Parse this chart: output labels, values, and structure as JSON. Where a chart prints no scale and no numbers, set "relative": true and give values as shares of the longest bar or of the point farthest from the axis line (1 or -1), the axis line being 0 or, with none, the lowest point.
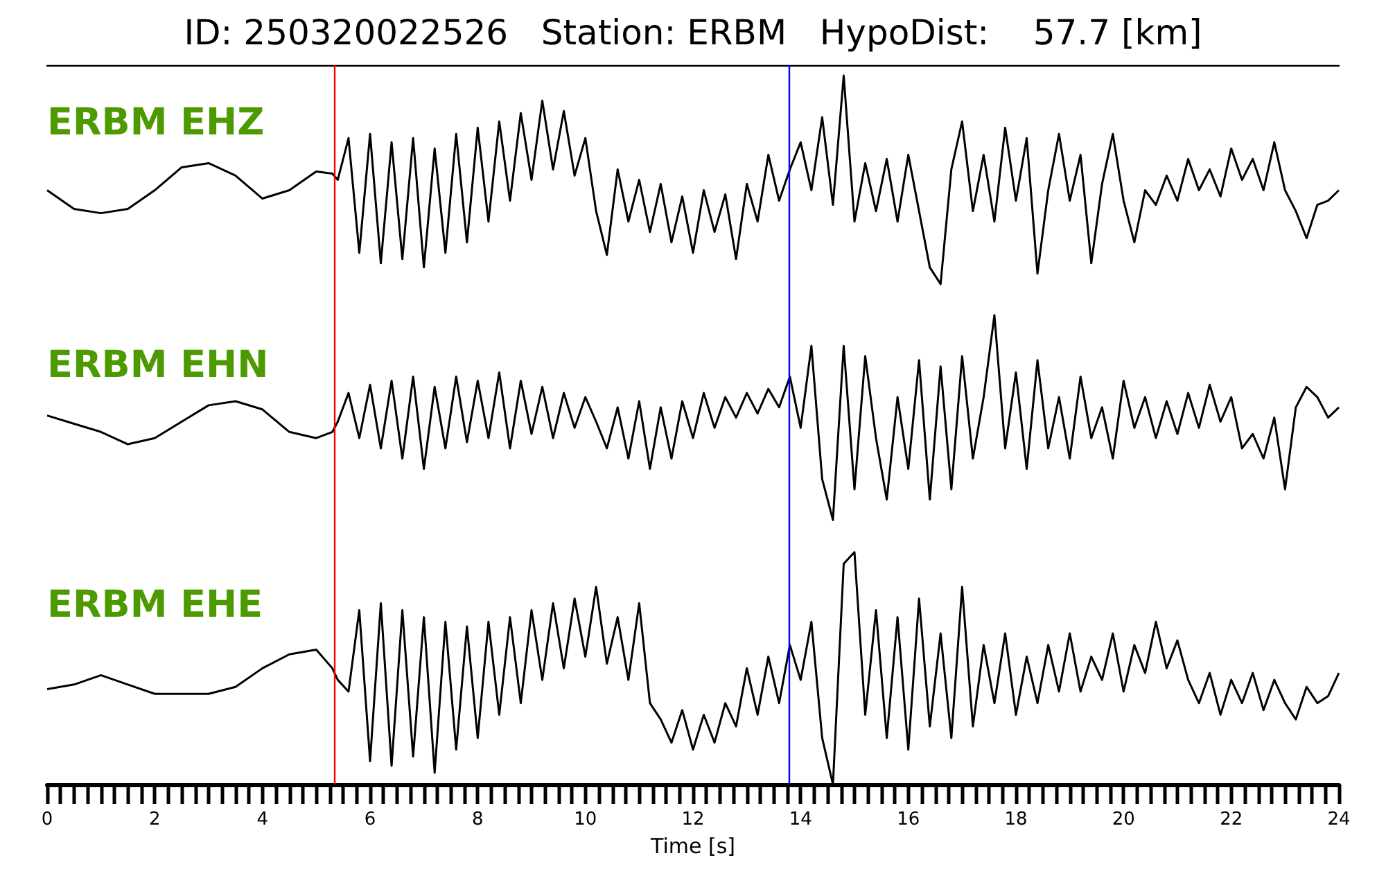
{
  "chart_data": [
    {
      "type": "line",
      "title": "ID: 250320022526   Station: ERBM   HypoDist:    57.7 [km]",
      "relative": true,
      "marker": "none",
      "tick_labels": false,
      "xlim": [
        0,
        24
      ],
      "x": [
        0,
        0.5,
        1,
        1.5,
        2,
        2.5,
        3,
        3.5,
        4,
        4.5,
        5,
        5.3,
        5.4,
        5.6,
        5.8,
        6,
        6.2,
        6.4,
        6.6,
        6.8,
        7,
        7.2,
        7.4,
        7.6,
        7.8,
        8,
        8.2,
        8.4,
        8.6,
        8.8,
        9,
        9.2,
        9.4,
        9.6,
        9.8,
        10,
        10.2,
        10.4,
        10.6,
        10.8,
        11,
        11.2,
        11.4,
        11.6,
        11.8,
        12,
        12.2,
        12.4,
        12.6,
        12.8,
        13,
        13.2,
        13.4,
        13.6,
        13.8,
        14,
        14.2,
        14.4,
        14.6,
        14.8,
        15,
        15.2,
        15.4,
        15.6,
        15.8,
        16,
        16.2,
        16.4,
        16.6,
        16.8,
        17,
        17.2,
        17.4,
        17.6,
        17.8,
        18,
        18.2,
        18.4,
        18.6,
        18.8,
        19,
        19.2,
        19.4,
        19.6,
        19.8,
        20,
        20.2,
        20.4,
        20.6,
        20.8,
        21,
        21.2,
        21.4,
        21.6,
        21.8,
        22,
        22.2,
        22.4,
        22.6,
        22.8,
        23,
        23.2,
        23.4,
        23.6,
        23.8,
        24
      ],
      "series": [
        {
          "name": "ERBM EHZ",
          "color": "#000000",
          "values": [
            0.45,
            0.36,
            0.34,
            0.36,
            0.45,
            0.56,
            0.58,
            0.52,
            0.41,
            0.45,
            0.54,
            0.53,
            0.5,
            0.7,
            0.15,
            0.72,
            0.1,
            0.68,
            0.12,
            0.7,
            0.08,
            0.65,
            0.15,
            0.72,
            0.2,
            0.75,
            0.3,
            0.78,
            0.4,
            0.82,
            0.5,
            0.88,
            0.55,
            0.83,
            0.52,
            0.7,
            0.35,
            0.14,
            0.55,
            0.3,
            0.5,
            0.25,
            0.48,
            0.2,
            0.42,
            0.15,
            0.45,
            0.25,
            0.43,
            0.12,
            0.48,
            0.3,
            0.62,
            0.4,
            0.55,
            0.68,
            0.45,
            0.8,
            0.38,
            1.0,
            0.3,
            0.58,
            0.35,
            0.6,
            0.3,
            0.62,
            0.35,
            0.08,
            0.0,
            0.55,
            0.78,
            0.35,
            0.62,
            0.3,
            0.75,
            0.4,
            0.7,
            0.05,
            0.45,
            0.72,
            0.4,
            0.62,
            0.1,
            0.48,
            0.72,
            0.4,
            0.2,
            0.45,
            0.38,
            0.52,
            0.4,
            0.6,
            0.45,
            0.55,
            0.42,
            0.65,
            0.5,
            0.6,
            0.45,
            0.68,
            0.45,
            0.35,
            0.22,
            0.38,
            0.4,
            0.45
          ]
        }
      ],
      "ref_lines": [
        {
          "axis": "x",
          "value": 5.33,
          "color": "#ff0000"
        },
        {
          "axis": "x",
          "value": 13.78,
          "color": "#0000ff"
        }
      ]
    },
    {
      "type": "line",
      "relative": true,
      "marker": "none",
      "tick_labels": false,
      "xlim": [
        0,
        24
      ],
      "x": [
        0,
        0.5,
        1,
        1.5,
        2,
        2.5,
        3,
        3.5,
        4,
        4.5,
        5,
        5.3,
        5.4,
        5.6,
        5.8,
        6,
        6.2,
        6.4,
        6.6,
        6.8,
        7,
        7.2,
        7.4,
        7.6,
        7.8,
        8,
        8.2,
        8.4,
        8.6,
        8.8,
        9,
        9.2,
        9.4,
        9.6,
        9.8,
        10,
        10.2,
        10.4,
        10.6,
        10.8,
        11,
        11.2,
        11.4,
        11.6,
        11.8,
        12,
        12.2,
        12.4,
        12.6,
        12.8,
        13,
        13.2,
        13.4,
        13.6,
        13.8,
        14,
        14.2,
        14.4,
        14.6,
        14.8,
        15,
        15.2,
        15.4,
        15.6,
        15.8,
        16,
        16.2,
        16.4,
        16.6,
        16.8,
        17,
        17.2,
        17.4,
        17.6,
        17.8,
        18,
        18.2,
        18.4,
        18.6,
        18.8,
        19,
        19.2,
        19.4,
        19.6,
        19.8,
        20,
        20.2,
        20.4,
        20.6,
        20.8,
        21,
        21.2,
        21.4,
        21.6,
        21.8,
        22,
        22.2,
        22.4,
        22.6,
        22.8,
        23,
        23.2,
        23.4,
        23.6,
        23.8,
        24
      ],
      "series": [
        {
          "name": "ERBM EHN",
          "color": "#000000",
          "values": [
            0.51,
            0.47,
            0.43,
            0.37,
            0.4,
            0.48,
            0.56,
            0.58,
            0.54,
            0.43,
            0.4,
            0.43,
            0.48,
            0.62,
            0.4,
            0.66,
            0.35,
            0.68,
            0.3,
            0.7,
            0.25,
            0.65,
            0.35,
            0.7,
            0.38,
            0.68,
            0.4,
            0.72,
            0.35,
            0.68,
            0.42,
            0.65,
            0.4,
            0.62,
            0.45,
            0.6,
            0.48,
            0.35,
            0.55,
            0.3,
            0.58,
            0.25,
            0.55,
            0.3,
            0.58,
            0.4,
            0.62,
            0.45,
            0.6,
            0.5,
            0.62,
            0.52,
            0.64,
            0.55,
            0.7,
            0.45,
            0.85,
            0.2,
            0.0,
            0.85,
            0.15,
            0.8,
            0.4,
            0.1,
            0.6,
            0.25,
            0.78,
            0.1,
            0.75,
            0.15,
            0.8,
            0.3,
            0.6,
            1.0,
            0.35,
            0.72,
            0.25,
            0.78,
            0.35,
            0.6,
            0.3,
            0.7,
            0.4,
            0.55,
            0.3,
            0.68,
            0.45,
            0.6,
            0.4,
            0.58,
            0.42,
            0.62,
            0.45,
            0.66,
            0.48,
            0.6,
            0.35,
            0.42,
            0.3,
            0.5,
            0.15,
            0.55,
            0.65,
            0.6,
            0.5,
            0.55
          ]
        }
      ],
      "ref_lines": [
        {
          "axis": "x",
          "value": 5.33,
          "color": "#ff0000"
        },
        {
          "axis": "x",
          "value": 13.78,
          "color": "#0000ff"
        }
      ]
    },
    {
      "type": "line",
      "relative": true,
      "marker": "none",
      "xlabel": "Time [s]",
      "xlim": [
        0,
        24
      ],
      "xticks": [
        0,
        {
          "value": 0.25,
          "label": null
        },
        {
          "value": 0.5,
          "label": null
        },
        {
          "value": 0.75,
          "label": null
        },
        {
          "value": 1,
          "label": null
        },
        {
          "value": 1.25,
          "label": null
        },
        {
          "value": 1.5,
          "label": null
        },
        {
          "value": 1.75,
          "label": null
        },
        2,
        {
          "value": 2.25,
          "label": null
        },
        {
          "value": 2.5,
          "label": null
        },
        {
          "value": 2.75,
          "label": null
        },
        {
          "value": 3,
          "label": null
        },
        {
          "value": 3.25,
          "label": null
        },
        {
          "value": 3.5,
          "label": null
        },
        {
          "value": 3.75,
          "label": null
        },
        4,
        {
          "value": 4.25,
          "label": null
        },
        {
          "value": 4.5,
          "label": null
        },
        {
          "value": 4.75,
          "label": null
        },
        {
          "value": 5,
          "label": null
        },
        {
          "value": 5.25,
          "label": null
        },
        {
          "value": 5.5,
          "label": null
        },
        {
          "value": 5.75,
          "label": null
        },
        6,
        {
          "value": 6.25,
          "label": null
        },
        {
          "value": 6.5,
          "label": null
        },
        {
          "value": 6.75,
          "label": null
        },
        {
          "value": 7,
          "label": null
        },
        {
          "value": 7.25,
          "label": null
        },
        {
          "value": 7.5,
          "label": null
        },
        {
          "value": 7.75,
          "label": null
        },
        8,
        {
          "value": 8.25,
          "label": null
        },
        {
          "value": 8.5,
          "label": null
        },
        {
          "value": 8.75,
          "label": null
        },
        {
          "value": 9,
          "label": null
        },
        {
          "value": 9.25,
          "label": null
        },
        {
          "value": 9.5,
          "label": null
        },
        {
          "value": 9.75,
          "label": null
        },
        10,
        {
          "value": 10.25,
          "label": null
        },
        {
          "value": 10.5,
          "label": null
        },
        {
          "value": 10.75,
          "label": null
        },
        {
          "value": 11,
          "label": null
        },
        {
          "value": 11.25,
          "label": null
        },
        {
          "value": 11.5,
          "label": null
        },
        {
          "value": 11.75,
          "label": null
        },
        12,
        {
          "value": 12.25,
          "label": null
        },
        {
          "value": 12.5,
          "label": null
        },
        {
          "value": 12.75,
          "label": null
        },
        {
          "value": 13,
          "label": null
        },
        {
          "value": 13.25,
          "label": null
        },
        {
          "value": 13.5,
          "label": null
        },
        {
          "value": 13.75,
          "label": null
        },
        14,
        {
          "value": 14.25,
          "label": null
        },
        {
          "value": 14.5,
          "label": null
        },
        {
          "value": 14.75,
          "label": null
        },
        {
          "value": 15,
          "label": null
        },
        {
          "value": 15.25,
          "label": null
        },
        {
          "value": 15.5,
          "label": null
        },
        {
          "value": 15.75,
          "label": null
        },
        16,
        {
          "value": 16.25,
          "label": null
        },
        {
          "value": 16.5,
          "label": null
        },
        {
          "value": 16.75,
          "label": null
        },
        {
          "value": 17,
          "label": null
        },
        {
          "value": 17.25,
          "label": null
        },
        {
          "value": 17.5,
          "label": null
        },
        {
          "value": 17.75,
          "label": null
        },
        18,
        {
          "value": 18.25,
          "label": null
        },
        {
          "value": 18.5,
          "label": null
        },
        {
          "value": 18.75,
          "label": null
        },
        {
          "value": 19,
          "label": null
        },
        {
          "value": 19.25,
          "label": null
        },
        {
          "value": 19.5,
          "label": null
        },
        {
          "value": 19.75,
          "label": null
        },
        20,
        {
          "value": 20.25,
          "label": null
        },
        {
          "value": 20.5,
          "label": null
        },
        {
          "value": 20.75,
          "label": null
        },
        {
          "value": 21,
          "label": null
        },
        {
          "value": 21.25,
          "label": null
        },
        {
          "value": 21.5,
          "label": null
        },
        {
          "value": 21.75,
          "label": null
        },
        22,
        {
          "value": 22.25,
          "label": null
        },
        {
          "value": 22.5,
          "label": null
        },
        {
          "value": 22.75,
          "label": null
        },
        {
          "value": 23,
          "label": null
        },
        {
          "value": 23.25,
          "label": null
        },
        {
          "value": 23.5,
          "label": null
        },
        {
          "value": 23.75,
          "label": null
        },
        24
      ],
      "x": [
        0,
        0.5,
        1,
        1.5,
        2,
        2.5,
        3,
        3.5,
        4,
        4.5,
        5,
        5.3,
        5.4,
        5.6,
        5.8,
        6,
        6.2,
        6.4,
        6.6,
        6.8,
        7,
        7.2,
        7.4,
        7.6,
        7.8,
        8,
        8.2,
        8.4,
        8.6,
        8.8,
        9,
        9.2,
        9.4,
        9.6,
        9.8,
        10,
        10.2,
        10.4,
        10.6,
        10.8,
        11,
        11.2,
        11.4,
        11.6,
        11.8,
        12,
        12.2,
        12.4,
        12.6,
        12.8,
        13,
        13.2,
        13.4,
        13.6,
        13.8,
        14,
        14.2,
        14.4,
        14.6,
        14.8,
        15,
        15.2,
        15.4,
        15.6,
        15.8,
        16,
        16.2,
        16.4,
        16.6,
        16.8,
        17,
        17.2,
        17.4,
        17.6,
        17.8,
        18,
        18.2,
        18.4,
        18.6,
        18.8,
        19,
        19.2,
        19.4,
        19.6,
        19.8,
        20,
        20.2,
        20.4,
        20.6,
        20.8,
        21,
        21.2,
        21.4,
        21.6,
        21.8,
        22,
        22.2,
        22.4,
        22.6,
        22.8,
        23,
        23.2,
        23.4,
        23.6,
        23.8,
        24
      ],
      "series": [
        {
          "name": "ERBM EHE",
          "color": "#000000",
          "values": [
            0.41,
            0.43,
            0.47,
            0.43,
            0.39,
            0.39,
            0.39,
            0.42,
            0.5,
            0.56,
            0.58,
            0.5,
            0.45,
            0.4,
            0.75,
            0.1,
            0.78,
            0.08,
            0.75,
            0.12,
            0.72,
            0.05,
            0.7,
            0.15,
            0.68,
            0.2,
            0.7,
            0.3,
            0.72,
            0.35,
            0.75,
            0.45,
            0.78,
            0.5,
            0.8,
            0.55,
            0.85,
            0.52,
            0.72,
            0.45,
            0.78,
            0.35,
            0.28,
            0.18,
            0.32,
            0.15,
            0.3,
            0.18,
            0.35,
            0.25,
            0.5,
            0.3,
            0.55,
            0.35,
            0.6,
            0.45,
            0.7,
            0.2,
            0.0,
            0.95,
            1.0,
            0.3,
            0.75,
            0.2,
            0.72,
            0.15,
            0.8,
            0.25,
            0.65,
            0.2,
            0.85,
            0.25,
            0.6,
            0.35,
            0.65,
            0.3,
            0.55,
            0.35,
            0.6,
            0.4,
            0.65,
            0.4,
            0.55,
            0.45,
            0.65,
            0.4,
            0.6,
            0.48,
            0.7,
            0.5,
            0.62,
            0.45,
            0.35,
            0.48,
            0.3,
            0.45,
            0.35,
            0.48,
            0.32,
            0.45,
            0.35,
            0.28,
            0.42,
            0.35,
            0.38,
            0.48
          ]
        }
      ],
      "ref_lines": [
        {
          "axis": "x",
          "value": 5.33,
          "color": "#ff0000"
        },
        {
          "axis": "x",
          "value": 13.78,
          "color": "#0000ff"
        }
      ]
    }
  ]
}
